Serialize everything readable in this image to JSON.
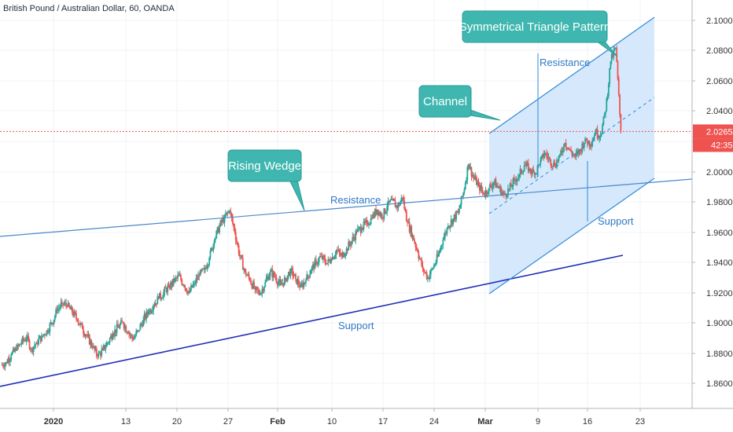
{
  "header": {
    "symbol_title": "British Pound / Australian Dollar, 60, OANDA"
  },
  "chart_data": {
    "type": "line",
    "title": "British Pound / Australian Dollar, 60, OANDA",
    "ylim": [
      1.845,
      2.105
    ],
    "y_ticks": [
      1.86,
      1.88,
      1.9,
      1.92,
      1.94,
      1.96,
      1.98,
      2.0,
      2.02,
      2.04,
      2.06,
      2.08,
      2.1
    ],
    "y_tick_labels": [
      "1.86000",
      "1.88000",
      "1.90000",
      "1.92000",
      "1.94000",
      "1.96000",
      "1.98000",
      "2.00000",
      "2.02000",
      "2.04000",
      "2.06000",
      "2.08000",
      "2.10000"
    ],
    "x_tick_labels": [
      "2020",
      "13",
      "20",
      "27",
      "Feb",
      "10",
      "17",
      "24",
      "Mar",
      "9",
      "16",
      "23"
    ],
    "current_price_label": "2.02653",
    "countdown_label": "42:35",
    "current_price": 2.02653,
    "series": [
      {
        "values": [
          1.872,
          1.874,
          1.879,
          1.882,
          1.887,
          1.89,
          1.883,
          1.887,
          1.891,
          1.895,
          1.9,
          1.908,
          1.913,
          1.911,
          1.907,
          1.902,
          1.896,
          1.891,
          1.884,
          1.878,
          1.882,
          1.887,
          1.893,
          1.897,
          1.9,
          1.894,
          1.889,
          1.895,
          1.902,
          1.907,
          1.912,
          1.916,
          1.92,
          1.924,
          1.927,
          1.931,
          1.925,
          1.92,
          1.926,
          1.931,
          1.935,
          1.943,
          1.955,
          1.964,
          1.97,
          1.974,
          1.96,
          1.944,
          1.934,
          1.928,
          1.922,
          1.919,
          1.927,
          1.934,
          1.93,
          1.925,
          1.929,
          1.935,
          1.929,
          1.924,
          1.928,
          1.935,
          1.94,
          1.944,
          1.939,
          1.942,
          1.948,
          1.944,
          1.949,
          1.954,
          1.96,
          1.963,
          1.966,
          1.969,
          1.975,
          1.97,
          1.977,
          1.981,
          1.976,
          1.983,
          1.966,
          1.958,
          1.947,
          1.936,
          1.93,
          1.936,
          1.944,
          1.955,
          1.964,
          1.969,
          1.973,
          1.986,
          2.005,
          1.996,
          1.991,
          1.985,
          1.989,
          1.993,
          1.989,
          1.985,
          1.988,
          1.994,
          1.998,
          2.004,
          2.002,
          1.998,
          2.005,
          2.012,
          2.008,
          2.004,
          2.011,
          2.019,
          2.014,
          2.01,
          2.014,
          2.022,
          2.018,
          2.026,
          2.024,
          2.04,
          2.073,
          2.082,
          2.027
        ]
      }
    ],
    "annotations": {
      "callouts": [
        "Rising Wedge",
        "Channel",
        "Symmetrical Triangle Pattern"
      ],
      "line_labels": [
        "Resistance",
        "Support",
        "Resistance",
        "Support"
      ]
    }
  }
}
